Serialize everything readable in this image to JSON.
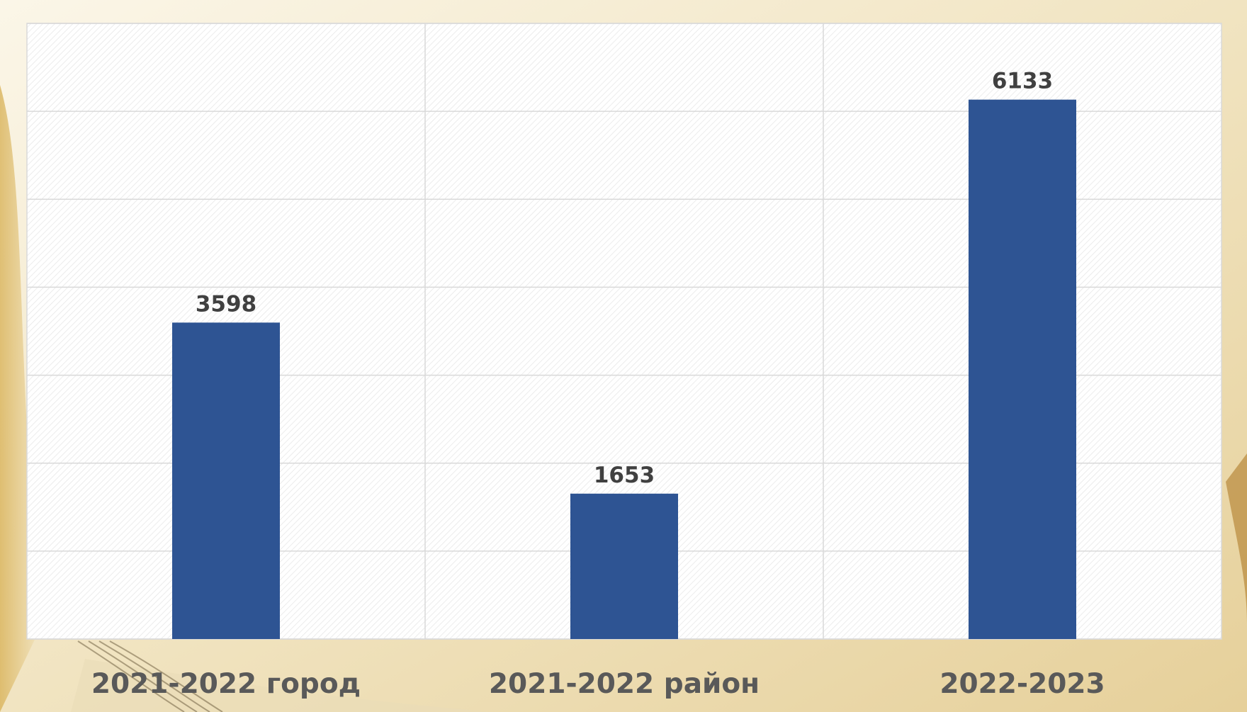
{
  "chart_data": {
    "type": "bar",
    "categories": [
      "2021-2022 город",
      "2021-2022 район",
      "2022-2023"
    ],
    "values": [
      3598,
      1653,
      6133
    ],
    "data_labels": [
      "3598",
      "1653",
      "6133"
    ],
    "title": "",
    "xlabel": "",
    "ylabel": "",
    "ylim": [
      0,
      7000
    ],
    "grid": true,
    "legend": "none",
    "colors": {
      "bar": "#2e5493",
      "plot_background": "#ffffff",
      "gridline": "#d9d9d9",
      "label": "#404040"
    }
  }
}
